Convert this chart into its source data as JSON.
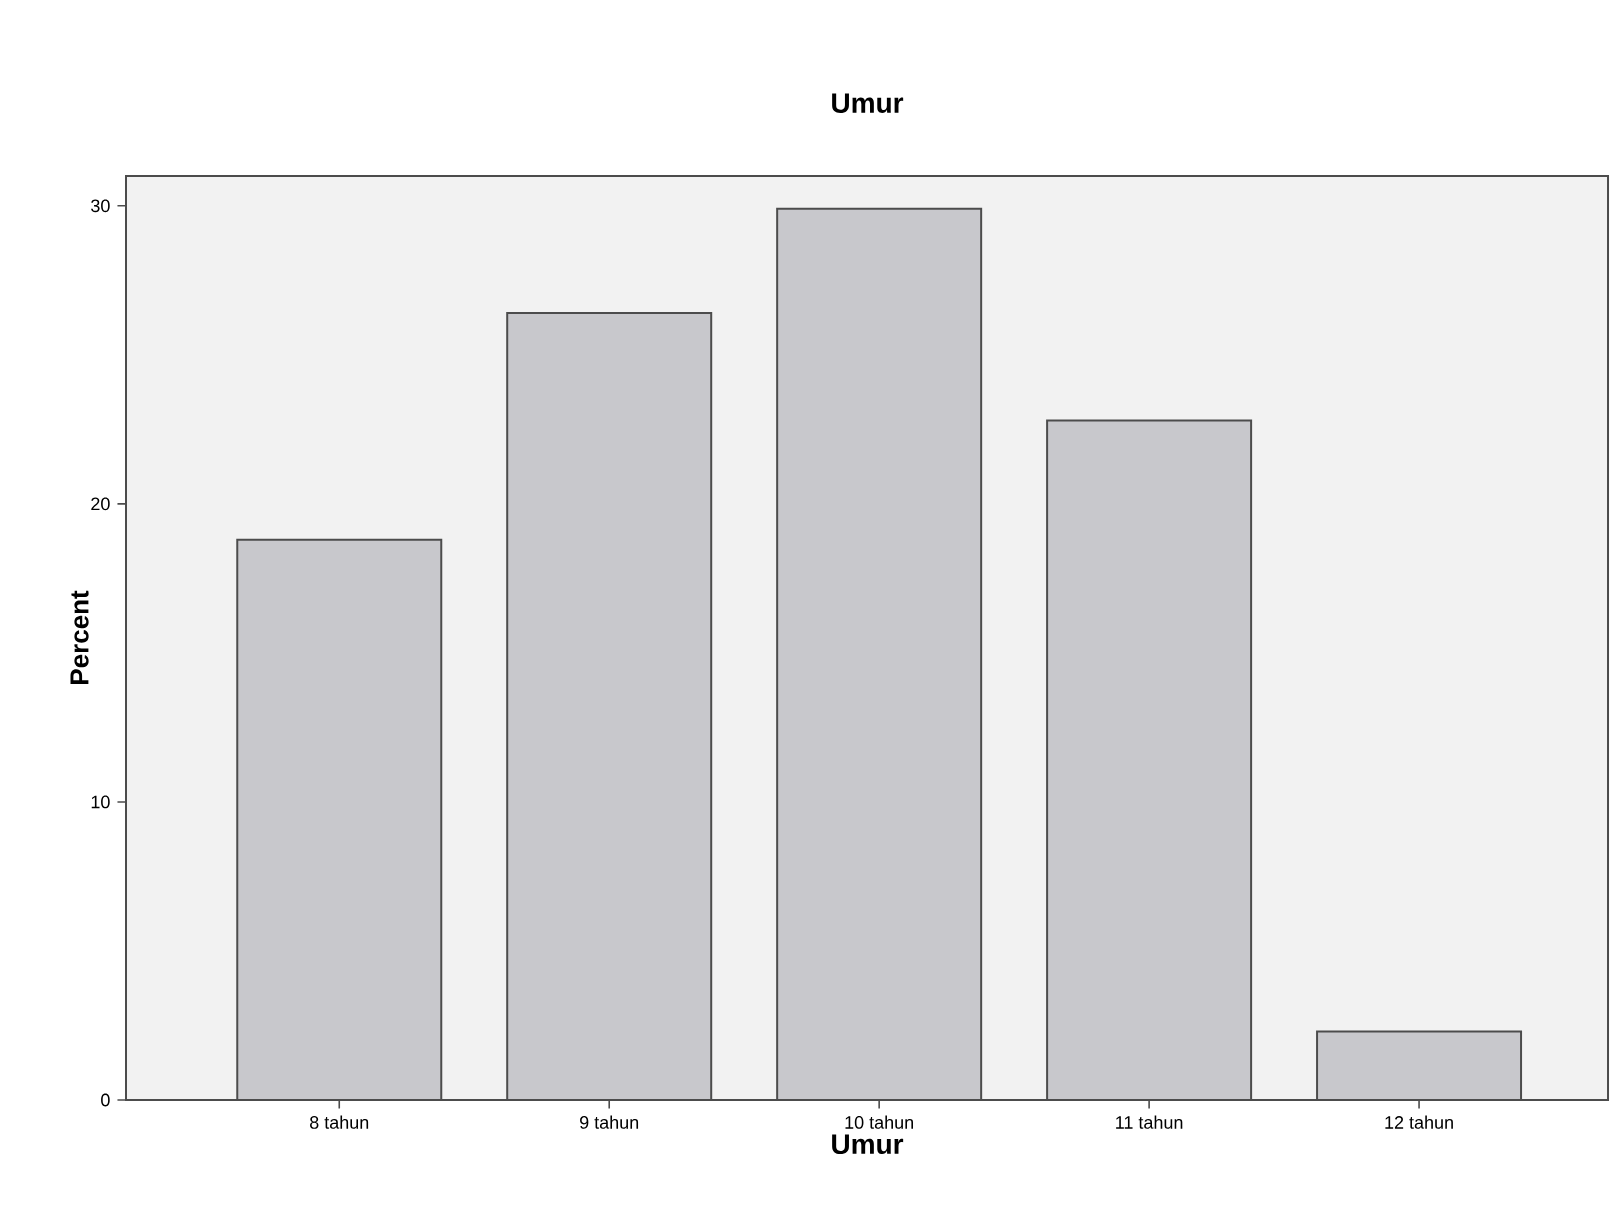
{
  "chart_data": {
    "type": "bar",
    "title": "Umur",
    "xlabel": "Umur",
    "ylabel": "Percent",
    "categories": [
      "8 tahun",
      "9 tahun",
      "10 tahun",
      "11 tahun",
      "12 tahun"
    ],
    "values": [
      18.8,
      26.4,
      29.9,
      22.8,
      2.3
    ],
    "color": "#c8c8cc",
    "ylim": [
      0,
      31
    ],
    "yticks": [
      0,
      10,
      20,
      30
    ],
    "grid": false
  }
}
